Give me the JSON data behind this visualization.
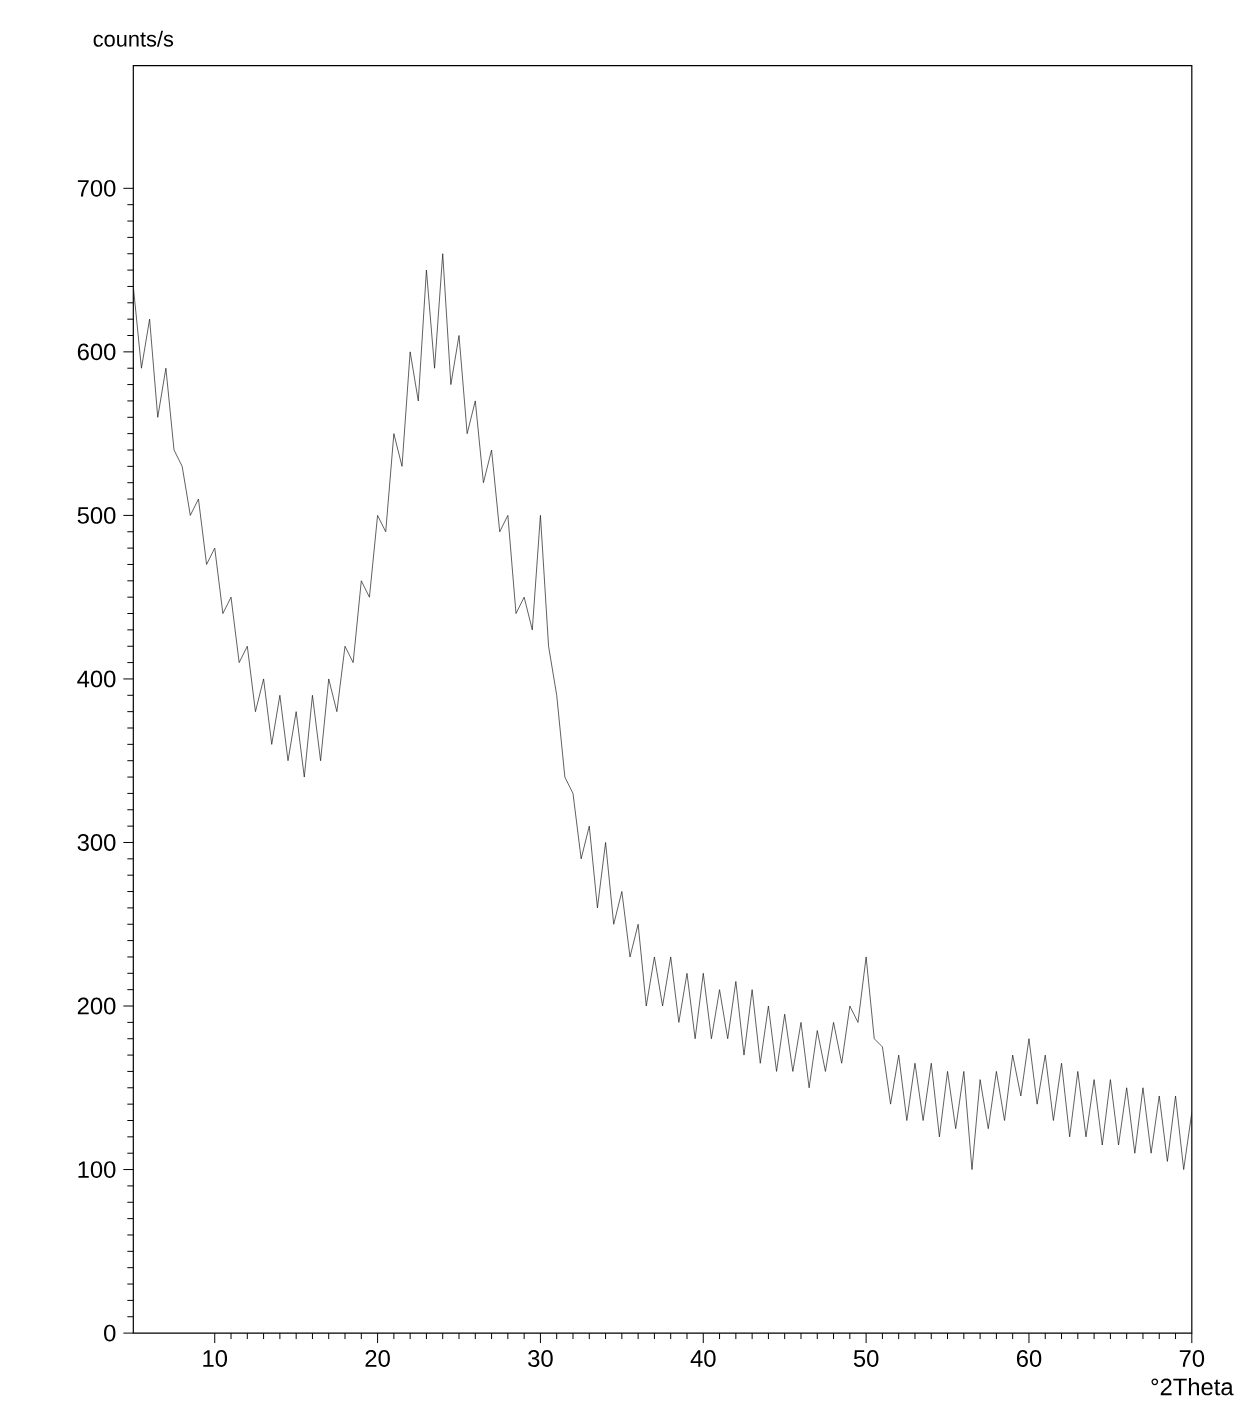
{
  "chart_data": {
    "type": "line",
    "xlabel": "°2Theta",
    "ylabel": "counts/s",
    "color": "#1a1a1a",
    "xlim": [
      5,
      70
    ],
    "ylim": [
      0,
      775
    ],
    "xticks": [
      10,
      20,
      30,
      40,
      50,
      60,
      70
    ],
    "yticks": [
      0,
      100,
      200,
      300,
      400,
      500,
      600,
      700
    ],
    "x": [
      5,
      5.5,
      6,
      6.5,
      7,
      7.5,
      8,
      8.5,
      9,
      9.5,
      10,
      10.5,
      11,
      11.5,
      12,
      12.5,
      13,
      13.5,
      14,
      14.5,
      15,
      15.5,
      16,
      16.5,
      17,
      17.5,
      18,
      18.5,
      19,
      19.5,
      20,
      20.5,
      21,
      21.5,
      22,
      22.5,
      23,
      23.5,
      24,
      24.5,
      25,
      25.5,
      26,
      26.5,
      27,
      27.5,
      28,
      28.5,
      29,
      29.5,
      30,
      30.5,
      31,
      31.5,
      32,
      32.5,
      33,
      33.5,
      34,
      34.5,
      35,
      35.5,
      36,
      36.5,
      37,
      37.5,
      38,
      38.5,
      39,
      39.5,
      40,
      40.5,
      41,
      41.5,
      42,
      42.5,
      43,
      43.5,
      44,
      44.5,
      45,
      45.5,
      46,
      46.5,
      47,
      47.5,
      48,
      48.5,
      49,
      49.5,
      50,
      50.5,
      51,
      51.5,
      52,
      52.5,
      53,
      53.5,
      54,
      54.5,
      55,
      55.5,
      56,
      56.5,
      57,
      57.5,
      58,
      58.5,
      59,
      59.5,
      60,
      60.5,
      61,
      61.5,
      62,
      62.5,
      63,
      63.5,
      64,
      64.5,
      65,
      65.5,
      66,
      66.5,
      67,
      67.5,
      68,
      68.5,
      69,
      69.5,
      70
    ],
    "values": [
      640,
      590,
      620,
      560,
      590,
      540,
      530,
      500,
      510,
      470,
      480,
      440,
      450,
      410,
      420,
      380,
      400,
      360,
      390,
      350,
      380,
      340,
      390,
      350,
      400,
      380,
      420,
      410,
      460,
      450,
      500,
      490,
      550,
      530,
      600,
      570,
      650,
      590,
      660,
      580,
      610,
      550,
      570,
      520,
      540,
      490,
      500,
      440,
      450,
      430,
      500,
      420,
      390,
      340,
      330,
      290,
      310,
      260,
      300,
      250,
      270,
      230,
      250,
      200,
      230,
      200,
      230,
      190,
      220,
      180,
      220,
      180,
      210,
      180,
      215,
      170,
      210,
      165,
      200,
      160,
      195,
      160,
      190,
      150,
      185,
      160,
      190,
      165,
      200,
      190,
      230,
      180,
      175,
      140,
      170,
      130,
      165,
      130,
      165,
      120,
      160,
      125,
      160,
      100,
      155,
      125,
      160,
      130,
      170,
      145,
      180,
      140,
      170,
      130,
      165,
      120,
      160,
      120,
      155,
      115,
      155,
      115,
      150,
      110,
      150,
      110,
      145,
      105,
      145,
      100,
      135
    ]
  }
}
